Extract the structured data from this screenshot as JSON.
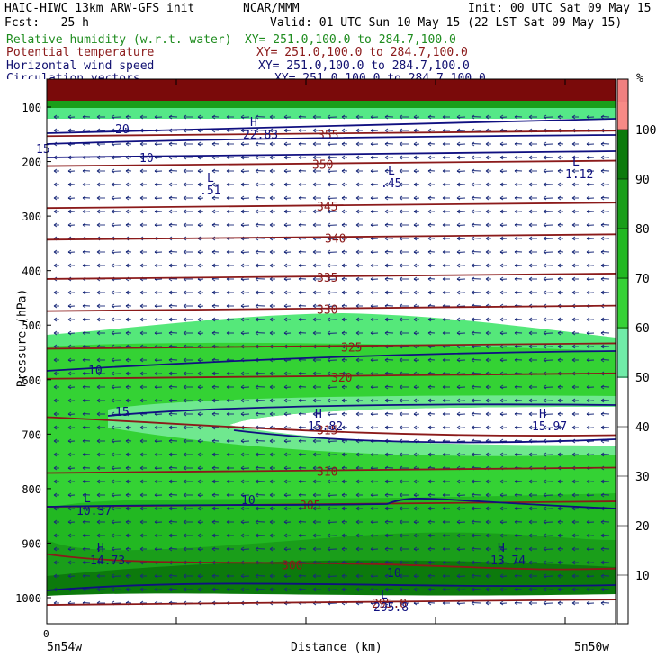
{
  "header": {
    "model": "HAIC-HIWC 13km ARW-GFS init",
    "center": "NCAR/MMM",
    "init": "Init: 00 UTC Sat 09 May 15",
    "fcst": "Fcst:   25 h",
    "valid": "Valid: 01 UTC Sun 10 May 15 (22 LST Sat 09 May 15)"
  },
  "fields": [
    {
      "name": "Relative humidity (w.r.t. water)",
      "xy": "XY= 251.0,100.0 to 284.7,100.0",
      "color": "#1e8c1e"
    },
    {
      "name": "Potential temperature",
      "xy": "XY= 251.0,100.0 to 284.7,100.0",
      "color": "#8b1a1a"
    },
    {
      "name": "Horizontal wind speed",
      "xy": "XY= 251.0,100.0 to 284.7,100.0",
      "color": "#101070"
    },
    {
      "name": "Circulation vectors",
      "xy": "XY= 251.0,100.0 to 284.7,100.0",
      "color": "#101070"
    }
  ],
  "axes": {
    "ylabel": "Pressure (hPa)",
    "xlabel": "Distance (km)",
    "x_start": "0",
    "left_end": "5n54w",
    "right_end": "5n50w",
    "yticks": [
      "100",
      "200",
      "300",
      "400",
      "500",
      "600",
      "700",
      "800",
      "900",
      "1000"
    ]
  },
  "colorbar": {
    "unit": "%",
    "labels": [
      "100",
      "90",
      "80",
      "70",
      "60",
      "50",
      "40",
      "30",
      "20",
      "10"
    ],
    "colors": [
      "#f08080",
      "#fb8c84",
      "#0c7a0c",
      "#1a9e1a",
      "#22b822",
      "#36d236",
      "#55e655",
      "#80f0a8",
      "#ffffff",
      "#ffffff",
      "#ffffff",
      "#ffffff",
      "#ffffff"
    ]
  },
  "chart_data": {
    "type": "heatmap",
    "title": "HAIC-HIWC 13km ARW-GFS init",
    "ylim": [
      1000,
      100
    ],
    "theta_contours": [
      {
        "label": "355",
        "p": 150
      },
      {
        "label": "350",
        "p": 205
      },
      {
        "label": "345",
        "p": 282
      },
      {
        "label": "340",
        "p": 340
      },
      {
        "label": "335",
        "p": 412
      },
      {
        "label": "330",
        "p": 471
      },
      {
        "label": "325",
        "p": 540
      },
      {
        "label": "320",
        "p": 595
      },
      {
        "label": "315",
        "p": 692
      },
      {
        "label": "310",
        "p": 768
      },
      {
        "label": "305",
        "p": 830
      },
      {
        "label": "300",
        "p": 940
      },
      {
        "label": "295.8",
        "p": 1010
      }
    ],
    "wind_contours": [
      {
        "label": "20",
        "p": 140
      },
      {
        "label": "15",
        "p": 165
      },
      {
        "label": "10",
        "p": 190
      },
      {
        "label": "10",
        "p": 578
      },
      {
        "label": "15",
        "p": 665
      },
      {
        "label": "10",
        "p": 840
      },
      {
        "label": "10",
        "p": 970
      }
    ],
    "extrema": [
      {
        "type": "H",
        "value": "22.83",
        "p": 140
      },
      {
        "type": "L",
        "value": ".51",
        "p": 230
      },
      {
        "type": "L",
        "value": ".45",
        "p": 230
      },
      {
        "type": "L",
        "value": "1.12",
        "p": 210
      },
      {
        "type": "H",
        "value": "15.82",
        "p": 682
      },
      {
        "type": "H",
        "value": "15.97",
        "p": 682
      },
      {
        "type": "L",
        "value": "10.37",
        "p": 840
      },
      {
        "type": "H",
        "value": "14.73",
        "p": 925
      },
      {
        "type": "H",
        "value": "13.74",
        "p": 925
      },
      {
        "type": "L",
        "value": "295.8",
        "p": 1010
      }
    ]
  }
}
